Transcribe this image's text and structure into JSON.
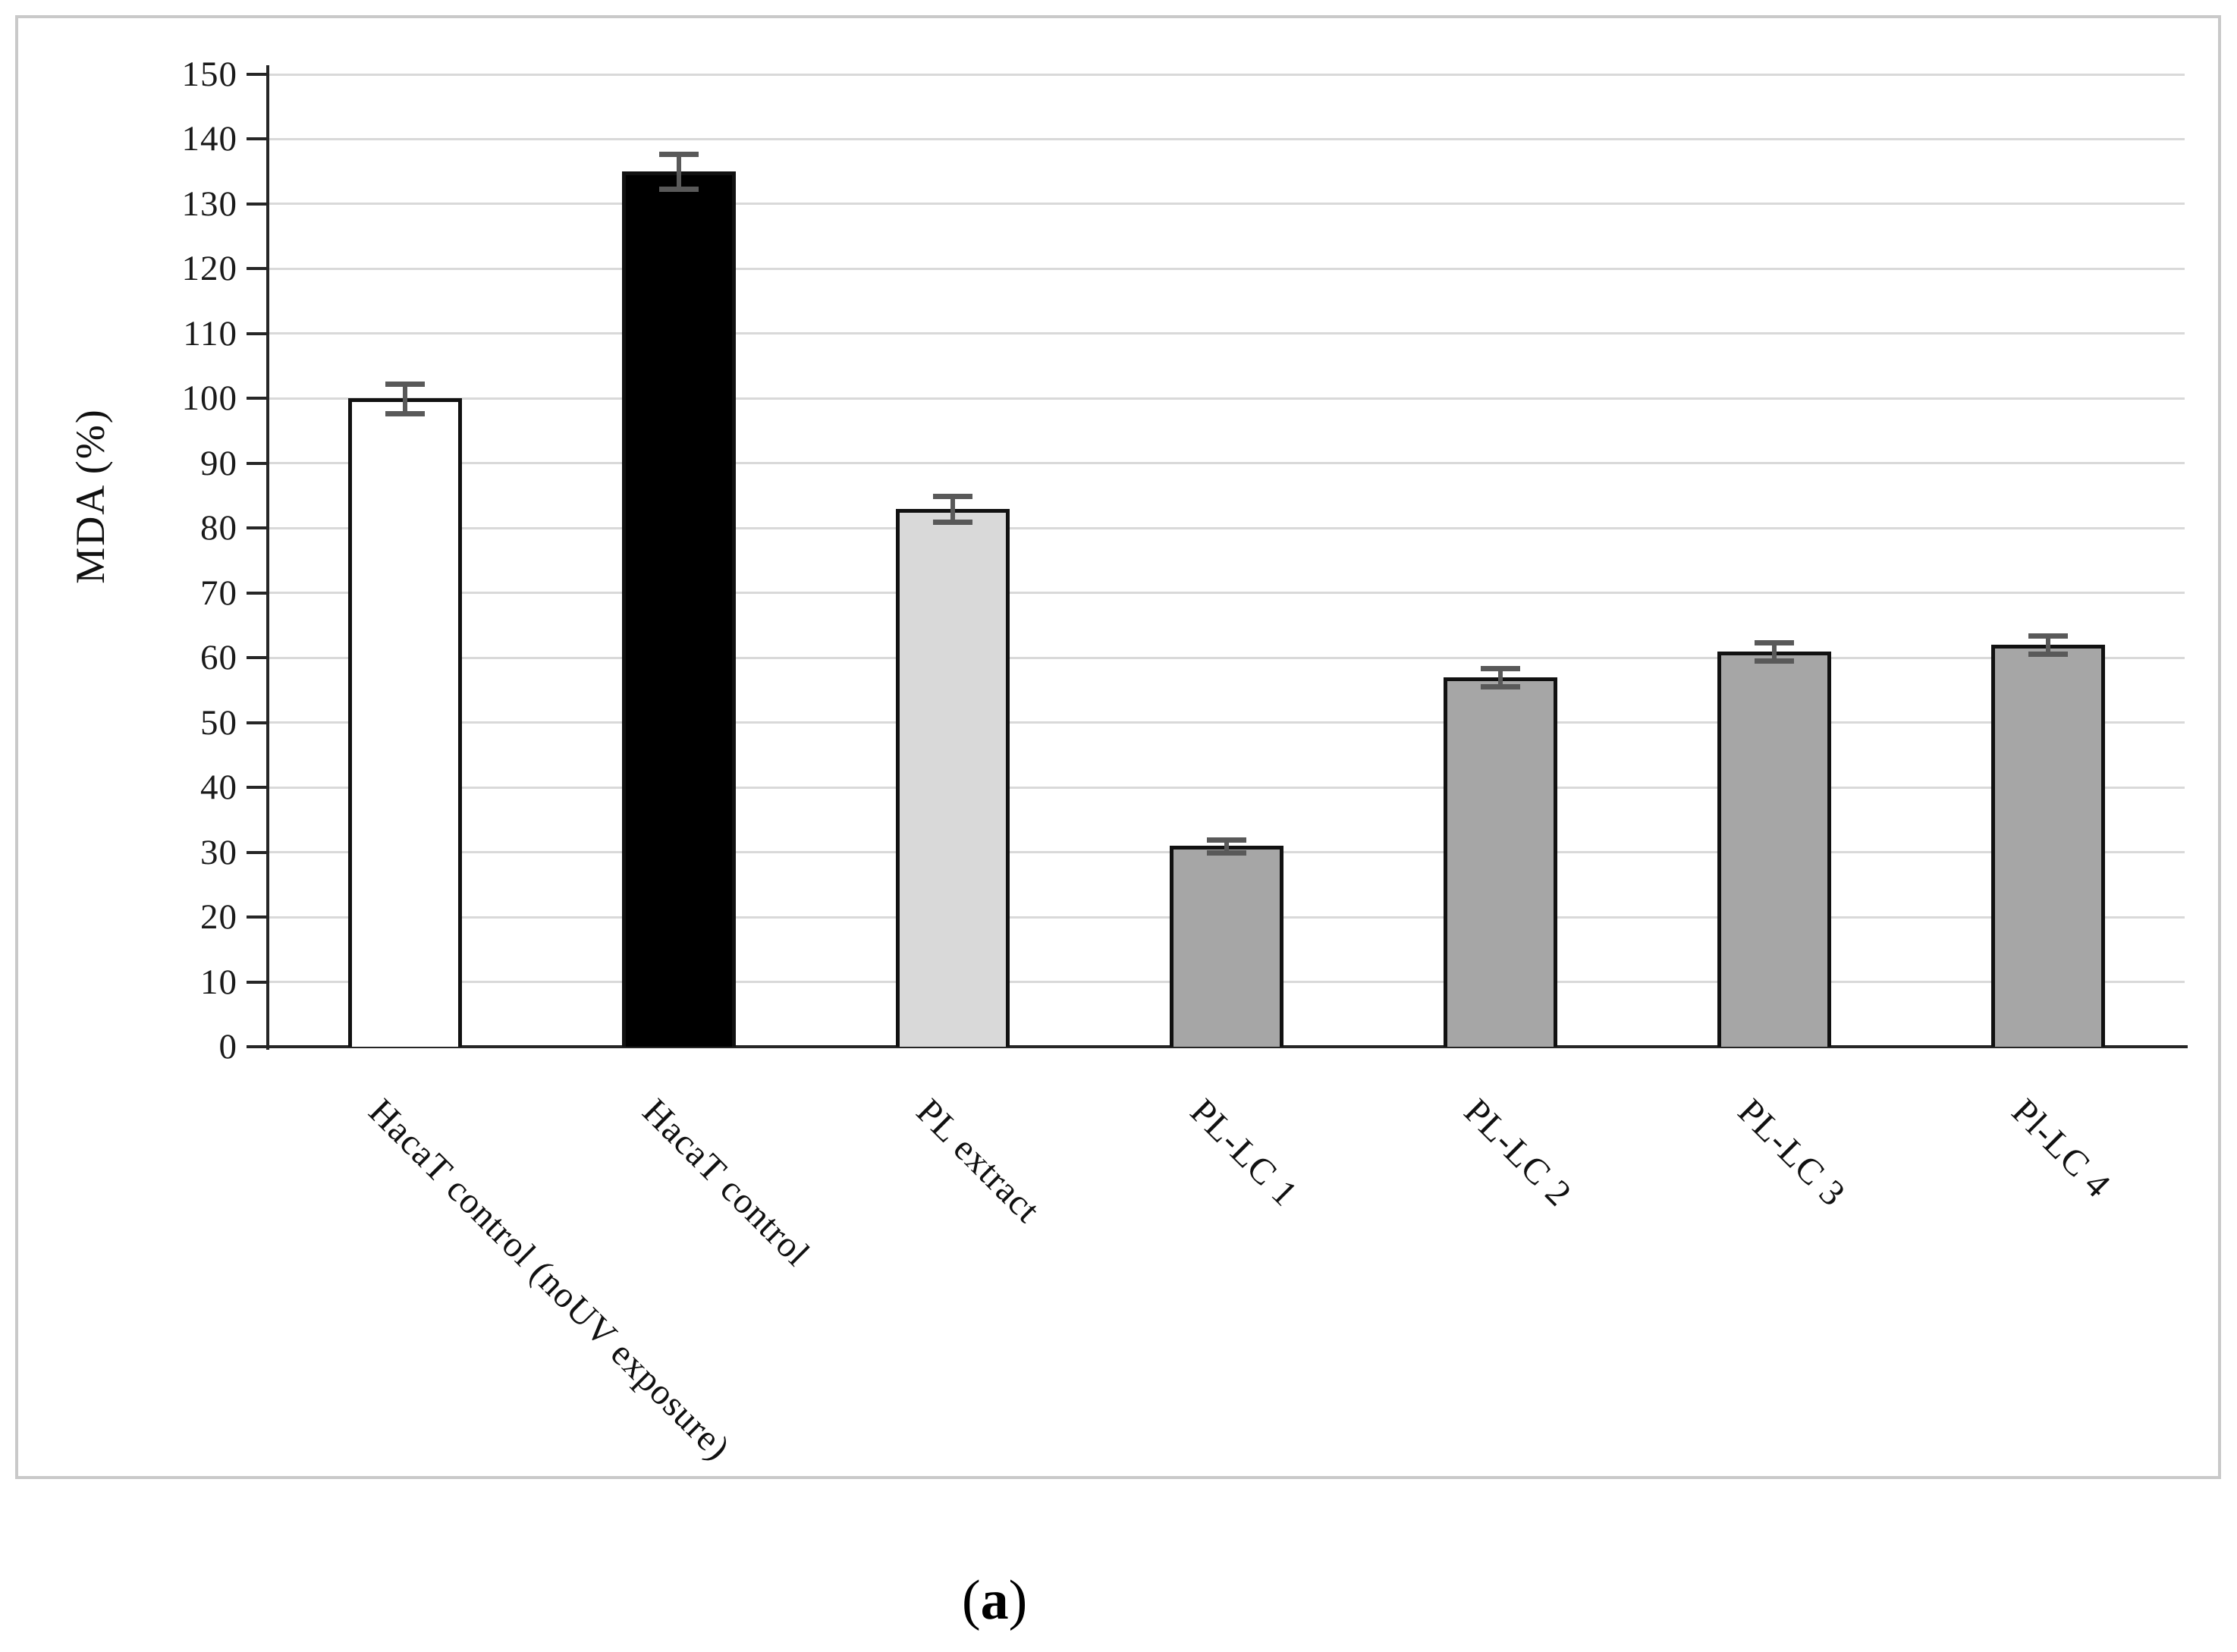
{
  "figure": {
    "caption_open": "(",
    "caption_letter": "a",
    "caption_close": ")"
  },
  "chart_data": {
    "type": "bar",
    "title": "",
    "xlabel": "",
    "ylabel": "MDA (%)",
    "ylim": [
      0,
      150
    ],
    "ytick_step": 10,
    "grid": "horizontal",
    "legend": "none",
    "categories": [
      "HacaT control (noUV exposure)",
      "HacaT control",
      "PL extract",
      "PL-LC 1",
      "PL-LC 2",
      "PL-LC 3",
      "Pl-LC 4"
    ],
    "values": [
      100,
      135,
      83,
      31,
      57,
      61,
      62
    ],
    "errors": [
      2.3,
      2.7,
      2.0,
      1.0,
      1.4,
      1.4,
      1.4
    ],
    "bar_fills": [
      "#ffffff",
      "#000000",
      "#d9d9d9",
      "#a6a6a6",
      "#a6a6a6",
      "#a6a6a6",
      "#a6a6a6"
    ],
    "bar_border_color": "#111111",
    "error_bar_color": "#595959",
    "gridline_color": "#d9d9d9",
    "axis_color": "#262626",
    "frame_color": "#c9c9c9"
  }
}
